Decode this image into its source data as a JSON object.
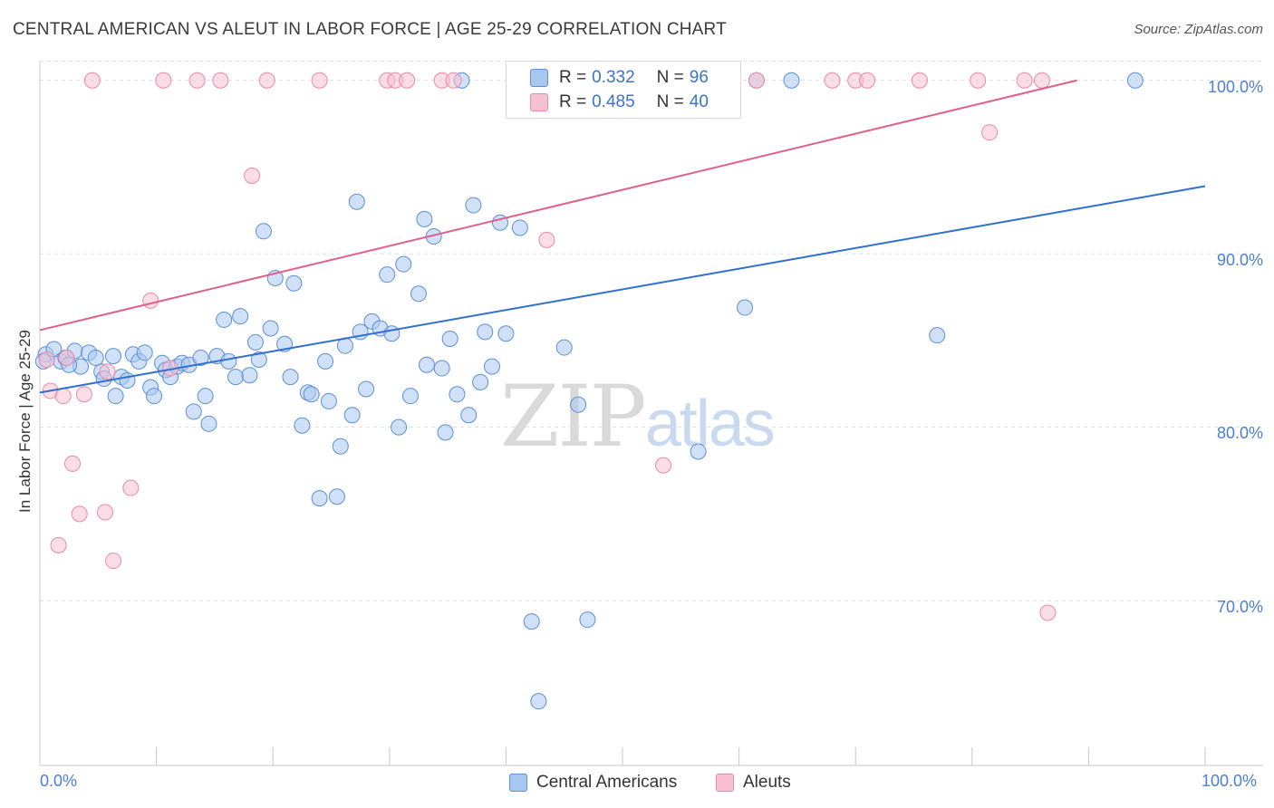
{
  "title": "CENTRAL AMERICAN VS ALEUT IN LABOR FORCE | AGE 25-29 CORRELATION CHART",
  "source": "Source: ZipAtlas.com",
  "watermark": {
    "part1": "ZIP",
    "part2": "atlas"
  },
  "colors": {
    "blue_fill": "#a9c8f0",
    "blue_stroke": "#5b8fd6",
    "blue_line": "#2f6fd0",
    "pink_fill": "#f7c1d1",
    "pink_stroke": "#e88aa6",
    "pink_line": "#e0608a",
    "tick_text": "#4a7fd4",
    "grid": "#dddddd"
  },
  "legend": {
    "rows": [
      {
        "r_label": "R =",
        "r_value": "0.332",
        "n_label": "N =",
        "n_value": "96"
      },
      {
        "r_label": "R =",
        "r_value": "0.485",
        "n_label": "N =",
        "n_value": "40"
      }
    ]
  },
  "bottom_legend": {
    "series1": "Central Americans",
    "series2": "Aleuts"
  },
  "chart_data": {
    "type": "scatter",
    "title": "CENTRAL AMERICAN VS ALEUT IN LABOR FORCE | AGE 25-29 CORRELATION CHART",
    "xlabel": "",
    "ylabel": "In Labor Force | Age 25-29",
    "xlim": [
      0,
      100
    ],
    "ylim": [
      60.5,
      101.5
    ],
    "x_tick_labels": [
      "0.0%",
      "100.0%"
    ],
    "y_ticks": [
      70,
      80,
      90,
      100
    ],
    "y_tick_labels": [
      "70.0%",
      "80.0%",
      "90.0%",
      "100.0%"
    ],
    "grid": "horizontal dashed",
    "legend_position": "top-center",
    "series": [
      {
        "name": "Central Americans",
        "color": "#a9c8f0",
        "trend": {
          "x": [
            0,
            100
          ],
          "y": [
            82.0,
            93.9
          ]
        },
        "points": [
          [
            0.5,
            84.2
          ],
          [
            1.2,
            84.5
          ],
          [
            1.8,
            83.8
          ],
          [
            2.2,
            84.0
          ],
          [
            3.0,
            84.4
          ],
          [
            3.5,
            83.5
          ],
          [
            4.2,
            84.3
          ],
          [
            4.8,
            84.0
          ],
          [
            5.3,
            83.2
          ],
          [
            5.5,
            82.8
          ],
          [
            6.3,
            84.1
          ],
          [
            6.5,
            81.8
          ],
          [
            7.0,
            82.9
          ],
          [
            7.5,
            82.7
          ],
          [
            8.0,
            84.2
          ],
          [
            8.5,
            83.8
          ],
          [
            9.0,
            84.3
          ],
          [
            9.5,
            82.3
          ],
          [
            9.8,
            81.8
          ],
          [
            10.5,
            83.7
          ],
          [
            10.8,
            83.3
          ],
          [
            11.2,
            82.9
          ],
          [
            11.8,
            83.5
          ],
          [
            12.2,
            83.7
          ],
          [
            12.8,
            83.6
          ],
          [
            13.2,
            80.9
          ],
          [
            13.8,
            84.0
          ],
          [
            14.2,
            81.8
          ],
          [
            14.5,
            80.2
          ],
          [
            15.2,
            84.1
          ],
          [
            15.8,
            86.2
          ],
          [
            16.2,
            83.8
          ],
          [
            16.8,
            82.9
          ],
          [
            17.2,
            86.4
          ],
          [
            18.0,
            83.0
          ],
          [
            18.5,
            84.9
          ],
          [
            18.8,
            83.9
          ],
          [
            19.2,
            91.3
          ],
          [
            19.8,
            85.7
          ],
          [
            20.2,
            88.6
          ],
          [
            21.0,
            84.8
          ],
          [
            21.5,
            82.9
          ],
          [
            21.8,
            88.3
          ],
          [
            22.5,
            80.1
          ],
          [
            23.0,
            82.0
          ],
          [
            23.3,
            81.9
          ],
          [
            24.0,
            75.9
          ],
          [
            24.5,
            83.8
          ],
          [
            24.8,
            81.5
          ],
          [
            25.5,
            76.0
          ],
          [
            25.8,
            78.9
          ],
          [
            26.2,
            84.7
          ],
          [
            26.8,
            80.7
          ],
          [
            27.2,
            93.0
          ],
          [
            27.5,
            85.5
          ],
          [
            28.0,
            82.2
          ],
          [
            28.5,
            86.1
          ],
          [
            29.2,
            85.7
          ],
          [
            29.8,
            88.8
          ],
          [
            30.2,
            85.4
          ],
          [
            30.8,
            80.0
          ],
          [
            31.2,
            89.4
          ],
          [
            31.8,
            81.8
          ],
          [
            32.5,
            87.7
          ],
          [
            33.0,
            92.0
          ],
          [
            33.2,
            83.6
          ],
          [
            33.8,
            91.0
          ],
          [
            34.5,
            83.4
          ],
          [
            34.8,
            79.7
          ],
          [
            35.2,
            85.1
          ],
          [
            35.8,
            81.9
          ],
          [
            36.2,
            100.0
          ],
          [
            36.8,
            80.7
          ],
          [
            37.2,
            92.8
          ],
          [
            37.8,
            82.6
          ],
          [
            38.2,
            85.5
          ],
          [
            38.8,
            83.5
          ],
          [
            39.5,
            91.8
          ],
          [
            40.0,
            85.4
          ],
          [
            41.2,
            91.5
          ],
          [
            41.8,
            100.0
          ],
          [
            42.2,
            68.8
          ],
          [
            42.8,
            64.2
          ],
          [
            45.0,
            84.6
          ],
          [
            46.2,
            81.3
          ],
          [
            47.0,
            68.9
          ],
          [
            51.0,
            100.0
          ],
          [
            52.5,
            100.0
          ],
          [
            56.5,
            78.6
          ],
          [
            60.5,
            86.9
          ],
          [
            61.5,
            100.0
          ],
          [
            64.5,
            100.0
          ],
          [
            77.0,
            85.3
          ],
          [
            94.0,
            100.0
          ],
          [
            0.3,
            83.8
          ],
          [
            2.5,
            83.6
          ]
        ]
      },
      {
        "name": "Aleuts",
        "color": "#f7c1d1",
        "trend": {
          "x": [
            0,
            89
          ],
          "y": [
            85.6,
            100.0
          ]
        },
        "points": [
          [
            0.6,
            83.9
          ],
          [
            0.9,
            82.1
          ],
          [
            1.6,
            73.2
          ],
          [
            2.0,
            81.8
          ],
          [
            2.3,
            84.0
          ],
          [
            2.8,
            77.9
          ],
          [
            3.4,
            75.0
          ],
          [
            3.8,
            81.9
          ],
          [
            4.5,
            100.0
          ],
          [
            5.8,
            83.2
          ],
          [
            5.6,
            75.1
          ],
          [
            6.3,
            72.3
          ],
          [
            7.8,
            76.5
          ],
          [
            9.5,
            87.3
          ],
          [
            10.6,
            100.0
          ],
          [
            11.2,
            83.4
          ],
          [
            13.5,
            100.0
          ],
          [
            15.5,
            100.0
          ],
          [
            18.2,
            94.5
          ],
          [
            19.5,
            100.0
          ],
          [
            24.0,
            100.0
          ],
          [
            29.8,
            100.0
          ],
          [
            30.5,
            100.0
          ],
          [
            31.5,
            100.0
          ],
          [
            34.5,
            100.0
          ],
          [
            35.5,
            100.0
          ],
          [
            43.5,
            90.8
          ],
          [
            53.5,
            77.8
          ],
          [
            55.0,
            100.0
          ],
          [
            59.0,
            100.0
          ],
          [
            61.5,
            100.0
          ],
          [
            68.0,
            100.0
          ],
          [
            70.0,
            100.0
          ],
          [
            71.0,
            100.0
          ],
          [
            75.5,
            100.0
          ],
          [
            80.5,
            100.0
          ],
          [
            81.5,
            97.0
          ],
          [
            84.5,
            100.0
          ],
          [
            86.0,
            100.0
          ],
          [
            86.5,
            69.3
          ]
        ]
      }
    ]
  }
}
